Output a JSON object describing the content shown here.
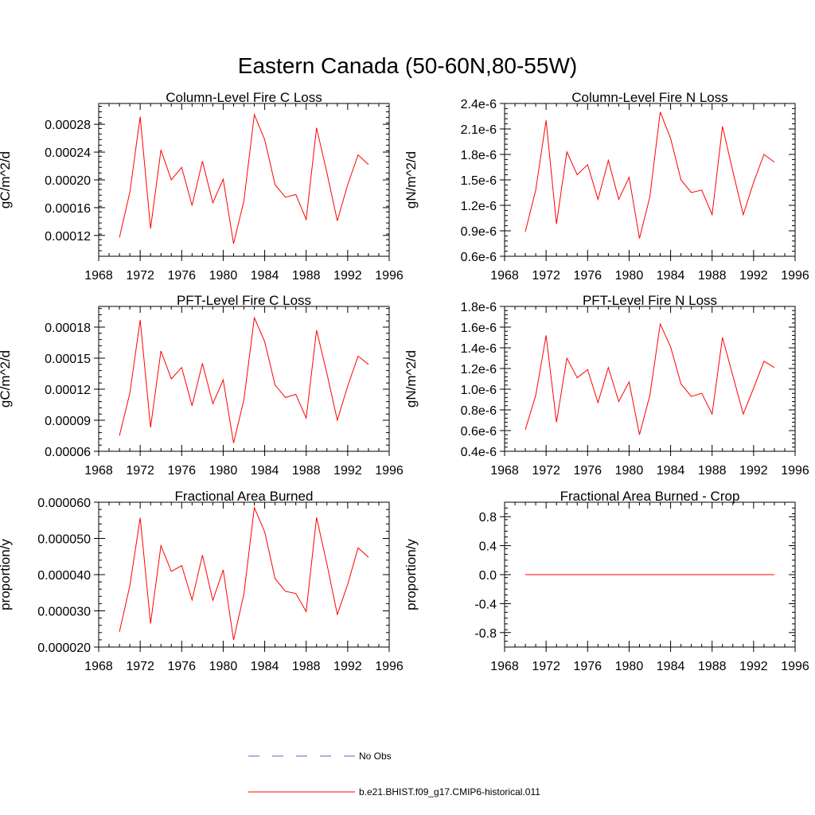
{
  "figure_title": "Eastern Canada (50-60N,80-55W)",
  "chart_data": [
    {
      "type": "line",
      "title": "Column-Level Fire C Loss",
      "xlabel": "",
      "ylabel": "gC/m^2/d",
      "xlim": [
        1968,
        1996
      ],
      "ylim": [
        9e-05,
        0.00031
      ],
      "xticks": [
        1968,
        1972,
        1976,
        1980,
        1984,
        1988,
        1992,
        1996
      ],
      "xtick_labels": [
        "1968",
        "1972",
        "1976",
        "1980",
        "1984",
        "1988",
        "1992",
        "1996"
      ],
      "yticks": [
        0.00012,
        0.00016,
        0.0002,
        0.00024,
        0.00028
      ],
      "ytick_labels": [
        "0.00012",
        "0.00016",
        "0.00020",
        "0.00024",
        "0.00028"
      ],
      "x": [
        1970,
        1971,
        1972,
        1973,
        1974,
        1975,
        1976,
        1977,
        1978,
        1979,
        1980,
        1981,
        1982,
        1983,
        1984,
        1985,
        1986,
        1987,
        1988,
        1989,
        1990,
        1991,
        1992,
        1993,
        1994
      ],
      "series": [
        {
          "name": "b.e21.BHIST.f09_g17.CMIP6-historical.011",
          "color": "#ff0000",
          "values": [
            0.000117,
            0.000182,
            0.000291,
            0.00013,
            0.000243,
            0.0002,
            0.000218,
            0.000163,
            0.000227,
            0.000167,
            0.000201,
            0.000108,
            0.00017,
            0.000294,
            0.000258,
            0.000193,
            0.000175,
            0.000179,
            0.000143,
            0.000275,
            0.00021,
            0.000141,
            0.000193,
            0.000236,
            0.000222
          ]
        }
      ]
    },
    {
      "type": "line",
      "title": "Column-Level Fire N Loss",
      "xlabel": "",
      "ylabel": "gN/m^2/d",
      "xlim": [
        1968,
        1996
      ],
      "ylim": [
        6e-07,
        2.4e-06
      ],
      "xticks": [
        1968,
        1972,
        1976,
        1980,
        1984,
        1988,
        1992,
        1996
      ],
      "xtick_labels": [
        "1968",
        "1972",
        "1976",
        "1980",
        "1984",
        "1988",
        "1992",
        "1996"
      ],
      "yticks": [
        6e-07,
        9e-07,
        1.2e-06,
        1.5e-06,
        1.8e-06,
        2.1e-06,
        2.4e-06
      ],
      "ytick_labels": [
        "0.6e-6",
        "0.9e-6",
        "1.2e-6",
        "1.5e-6",
        "1.8e-6",
        "2.1e-6",
        "2.4e-6"
      ],
      "x": [
        1970,
        1971,
        1972,
        1973,
        1974,
        1975,
        1976,
        1977,
        1978,
        1979,
        1980,
        1981,
        1982,
        1983,
        1984,
        1985,
        1986,
        1987,
        1988,
        1989,
        1990,
        1991,
        1992,
        1993,
        1994
      ],
      "series": [
        {
          "name": "b.e21.BHIST.f09_g17.CMIP6-historical.011",
          "color": "#ff0000",
          "values": [
            8.9e-07,
            1.38e-06,
            2.2e-06,
            9.8e-07,
            1.83e-06,
            1.56e-06,
            1.68e-06,
            1.27e-06,
            1.73e-06,
            1.27e-06,
            1.53e-06,
            8.1e-07,
            1.3e-06,
            2.3e-06,
            1.99e-06,
            1.5e-06,
            1.35e-06,
            1.38e-06,
            1.09e-06,
            2.13e-06,
            1.6e-06,
            1.09e-06,
            1.47e-06,
            1.8e-06,
            1.71e-06
          ]
        }
      ]
    },
    {
      "type": "line",
      "title": "PFT-Level Fire C Loss",
      "xlabel": "",
      "ylabel": "gC/m^2/d",
      "xlim": [
        1968,
        1996
      ],
      "ylim": [
        6e-05,
        0.0002
      ],
      "xticks": [
        1968,
        1972,
        1976,
        1980,
        1984,
        1988,
        1992,
        1996
      ],
      "xtick_labels": [
        "1968",
        "1972",
        "1976",
        "1980",
        "1984",
        "1988",
        "1992",
        "1996"
      ],
      "yticks": [
        6e-05,
        9e-05,
        0.00012,
        0.00015,
        0.00018
      ],
      "ytick_labels": [
        "0.00006",
        "0.00009",
        "0.00012",
        "0.00015",
        "0.00018"
      ],
      "x": [
        1970,
        1971,
        1972,
        1973,
        1974,
        1975,
        1976,
        1977,
        1978,
        1979,
        1980,
        1981,
        1982,
        1983,
        1984,
        1985,
        1986,
        1987,
        1988,
        1989,
        1990,
        1991,
        1992,
        1993,
        1994
      ],
      "series": [
        {
          "name": "b.e21.BHIST.f09_g17.CMIP6-historical.011",
          "color": "#ff0000",
          "values": [
            7.5e-05,
            0.000116,
            0.000187,
            8.3e-05,
            0.000157,
            0.00013,
            0.000141,
            0.000104,
            0.000145,
            0.000106,
            0.000129,
            6.8e-05,
            0.00011,
            0.000189,
            0.000166,
            0.000124,
            0.000112,
            0.000115,
            9.2e-05,
            0.000177,
            0.000135,
            9e-05,
            0.000123,
            0.000152,
            0.000144
          ]
        }
      ]
    },
    {
      "type": "line",
      "title": "PFT-Level Fire N Loss",
      "xlabel": "",
      "ylabel": "gN/m^2/d",
      "xlim": [
        1968,
        1996
      ],
      "ylim": [
        4e-07,
        1.8e-06
      ],
      "xticks": [
        1968,
        1972,
        1976,
        1980,
        1984,
        1988,
        1992,
        1996
      ],
      "xtick_labels": [
        "1968",
        "1972",
        "1976",
        "1980",
        "1984",
        "1988",
        "1992",
        "1996"
      ],
      "yticks": [
        4e-07,
        6e-07,
        8e-07,
        1e-06,
        1.2e-06,
        1.4e-06,
        1.6e-06,
        1.8e-06
      ],
      "ytick_labels": [
        "0.4e-6",
        "0.6e-6",
        "0.8e-6",
        "1.0e-6",
        "1.2e-6",
        "1.4e-6",
        "1.6e-6",
        "1.8e-6"
      ],
      "x": [
        1970,
        1971,
        1972,
        1973,
        1974,
        1975,
        1976,
        1977,
        1978,
        1979,
        1980,
        1981,
        1982,
        1983,
        1984,
        1985,
        1986,
        1987,
        1988,
        1989,
        1990,
        1991,
        1992,
        1993,
        1994
      ],
      "series": [
        {
          "name": "b.e21.BHIST.f09_g17.CMIP6-historical.011",
          "color": "#ff0000",
          "values": [
            6.1e-07,
            9.4e-07,
            1.52e-06,
            6.8e-07,
            1.3e-06,
            1.11e-06,
            1.19e-06,
            8.7e-07,
            1.21e-06,
            8.8e-07,
            1.07e-06,
            5.6e-07,
            9.4e-07,
            1.63e-06,
            1.41e-06,
            1.05e-06,
            9.3e-07,
            9.6e-07,
            7.6e-07,
            1.5e-06,
            1.13e-06,
            7.6e-07,
            1.01e-06,
            1.27e-06,
            1.21e-06
          ]
        }
      ]
    },
    {
      "type": "line",
      "title": "Fractional Area Burned",
      "xlabel": "",
      "ylabel": "proportion/y",
      "xlim": [
        1968,
        1996
      ],
      "ylim": [
        2e-05,
        6e-05
      ],
      "xticks": [
        1968,
        1972,
        1976,
        1980,
        1984,
        1988,
        1992,
        1996
      ],
      "xtick_labels": [
        "1968",
        "1972",
        "1976",
        "1980",
        "1984",
        "1988",
        "1992",
        "1996"
      ],
      "yticks": [
        2e-05,
        3e-05,
        4e-05,
        5e-05,
        6e-05
      ],
      "ytick_labels": [
        "0.000020",
        "0.000030",
        "0.000040",
        "0.000050",
        "0.000060"
      ],
      "x": [
        1970,
        1971,
        1972,
        1973,
        1974,
        1975,
        1976,
        1977,
        1978,
        1979,
        1980,
        1981,
        1982,
        1983,
        1984,
        1985,
        1986,
        1987,
        1988,
        1989,
        1990,
        1991,
        1992,
        1993,
        1994
      ],
      "series": [
        {
          "name": "b.e21.BHIST.f09_g17.CMIP6-historical.011",
          "color": "#ff0000",
          "values": [
            2.42e-05,
            3.69e-05,
            5.57e-05,
            2.65e-05,
            4.8e-05,
            4.09e-05,
            4.25e-05,
            3.3e-05,
            4.54e-05,
            3.29e-05,
            4.13e-05,
            2.2e-05,
            3.47e-05,
            5.85e-05,
            5.18e-05,
            3.89e-05,
            3.54e-05,
            3.48e-05,
            2.98e-05,
            5.58e-05,
            4.29e-05,
            2.9e-05,
            3.73e-05,
            4.74e-05,
            4.48e-05
          ]
        }
      ]
    },
    {
      "type": "line",
      "title": "Fractional Area Burned - Crop",
      "xlabel": "",
      "ylabel": "proportion/y",
      "xlim": [
        1968,
        1996
      ],
      "ylim": [
        -1.0,
        1.0
      ],
      "xticks": [
        1968,
        1972,
        1976,
        1980,
        1984,
        1988,
        1992,
        1996
      ],
      "xtick_labels": [
        "1968",
        "1972",
        "1976",
        "1980",
        "1984",
        "1988",
        "1992",
        "1996"
      ],
      "yticks": [
        -0.8,
        -0.4,
        0.0,
        0.4,
        0.8
      ],
      "ytick_labels": [
        "-0.8",
        "-0.4",
        "0.0",
        "0.4",
        "0.8"
      ],
      "x": [
        1970,
        1971,
        1972,
        1973,
        1974,
        1975,
        1976,
        1977,
        1978,
        1979,
        1980,
        1981,
        1982,
        1983,
        1984,
        1985,
        1986,
        1987,
        1988,
        1989,
        1990,
        1991,
        1992,
        1993,
        1994
      ],
      "series": [
        {
          "name": "b.e21.BHIST.f09_g17.CMIP6-historical.011",
          "color": "#ff0000",
          "values": [
            0,
            0,
            0,
            0,
            0,
            0,
            0,
            0,
            0,
            0,
            0,
            0,
            0,
            0,
            0,
            0,
            0,
            0,
            0,
            0,
            0,
            0,
            0,
            0,
            0
          ]
        }
      ]
    }
  ],
  "legend": [
    {
      "label": "No Obs",
      "color": "#5566bb",
      "style": "dashed"
    },
    {
      "label": "b.e21.BHIST.f09_g17.CMIP6-historical.011",
      "color": "#ff0000",
      "style": "solid"
    }
  ]
}
